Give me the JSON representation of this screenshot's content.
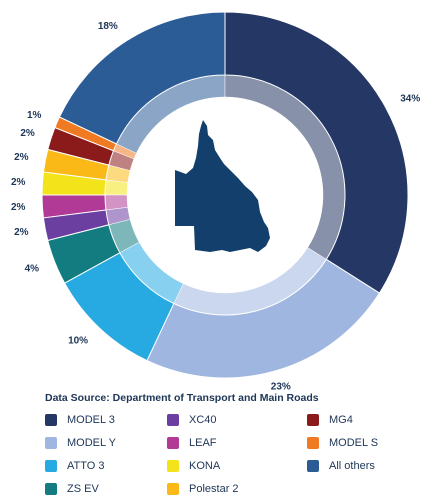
{
  "chart_data": {
    "type": "donut",
    "source": "Data Source:  Department of Transport and Main Roads",
    "categories": [
      "MODEL 3",
      "MODEL Y",
      "ATTO 3",
      "ZS EV",
      "XC40",
      "LEAF",
      "KONA",
      "Polestar 2",
      "MG4",
      "MODEL S",
      "All others"
    ],
    "values": [
      34,
      23,
      10,
      4,
      2,
      2,
      2,
      2,
      2,
      1,
      18
    ],
    "value_labels": [
      "34%",
      "23%",
      "10%",
      "4%",
      "2%",
      "2%",
      "2%",
      "2%",
      "2%",
      "1%",
      "18%"
    ],
    "colors": [
      "#253764",
      "#9fb6e0",
      "#27aae1",
      "#137c80",
      "#6b3fa0",
      "#b03a96",
      "#f2e31a",
      "#fbb917",
      "#8b1a1a",
      "#f07a22",
      "#2b5c96"
    ]
  }
}
